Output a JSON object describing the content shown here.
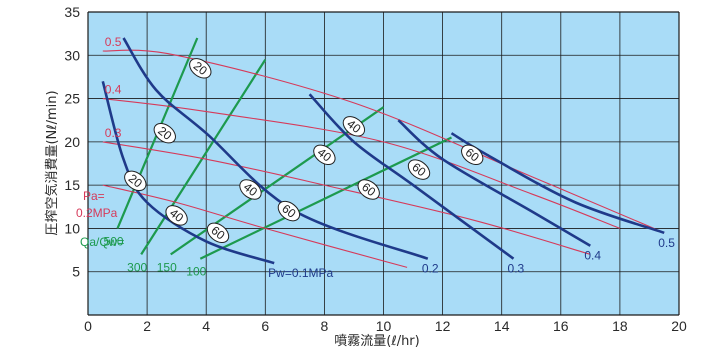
{
  "chart_data": {
    "type": "line",
    "xlabel": "噴霧流量(ℓ/hr)",
    "ylabel": "圧搾空気消費量(Nℓ/min)",
    "xlim": [
      0,
      20
    ],
    "ylim": [
      0,
      35
    ],
    "x_ticks": [
      "0",
      "2",
      "4",
      "6",
      "8",
      "10",
      "12",
      "14",
      "16",
      "18",
      "20"
    ],
    "y_ticks": [
      "5",
      "10",
      "15",
      "20",
      "25",
      "30",
      "35"
    ],
    "grid": true,
    "colors": {
      "background": "#a9dcf7",
      "grid": "#1a1a1a",
      "pa": "#d63a5a",
      "pw": "#1f3a8a",
      "ratio": "#1d9a4e",
      "badge_fill": "#ffffff"
    },
    "pa_header": [
      "Pa=",
      "0.2MPa"
    ],
    "ratio_header": "Qa/Qw=",
    "pa_lines": [
      {
        "label": "",
        "x": [
          0.5,
          3,
          6,
          10.8
        ],
        "y": [
          15,
          13,
          10,
          5.5
        ]
      },
      {
        "label": "0.3",
        "x": [
          0.5,
          4,
          8,
          13,
          17
        ],
        "y": [
          20,
          18,
          15,
          11,
          7
        ]
      },
      {
        "label": "0.4",
        "x": [
          0.5,
          4,
          10,
          15,
          18
        ],
        "y": [
          25,
          23.5,
          20,
          14,
          10
        ]
      },
      {
        "label": "0.5",
        "x": [
          0.5,
          3,
          9,
          15,
          19.5
        ],
        "y": [
          30.5,
          30,
          24.5,
          16,
          9.5
        ]
      }
    ],
    "pw_lines": [
      {
        "label": "Pw=0.1MPa",
        "x": [
          0.5,
          1.2,
          2,
          4,
          6.3
        ],
        "y": [
          27,
          18,
          13,
          8.5,
          6
        ]
      },
      {
        "label": "0.2",
        "x": [
          1.2,
          2.3,
          4,
          7,
          11.5
        ],
        "y": [
          32,
          26,
          21,
          12,
          6.5
        ]
      },
      {
        "label": "0.3",
        "x": [
          7.5,
          9,
          11,
          14.4
        ],
        "y": [
          25.5,
          20,
          15,
          6.5
        ]
      },
      {
        "label": "0.4",
        "x": [
          10.5,
          12,
          15,
          17
        ],
        "y": [
          22.5,
          18,
          12,
          8
        ]
      },
      {
        "label": "0.5",
        "x": [
          12.3,
          13.5,
          16.5,
          19.5
        ],
        "y": [
          21,
          18.5,
          13,
          9.5
        ]
      }
    ],
    "ratio_lines": [
      {
        "label": "500",
        "x": [
          1,
          3.7
        ],
        "y": [
          10,
          32
        ]
      },
      {
        "label": "300",
        "x": [
          1.8,
          6
        ],
        "y": [
          7,
          29.5
        ]
      },
      {
        "label": "150",
        "x": [
          2.8,
          10
        ],
        "y": [
          7,
          24
        ]
      },
      {
        "label": "100",
        "x": [
          3.8,
          12.3
        ],
        "y": [
          6.5,
          20.5
        ]
      }
    ],
    "ratio_badges": [
      {
        "text": "20",
        "x": 1.6,
        "y": 15.5
      },
      {
        "text": "20",
        "x": 2.6,
        "y": 21
      },
      {
        "text": "20",
        "x": 3.8,
        "y": 28.5
      },
      {
        "text": "40",
        "x": 3,
        "y": 11.5
      },
      {
        "text": "40",
        "x": 5.5,
        "y": 14.5
      },
      {
        "text": "40",
        "x": 8,
        "y": 18.5
      },
      {
        "text": "40",
        "x": 9,
        "y": 21.8
      },
      {
        "text": "60",
        "x": 4.4,
        "y": 9.5
      },
      {
        "text": "60",
        "x": 6.8,
        "y": 12
      },
      {
        "text": "60",
        "x": 9.5,
        "y": 14.5
      },
      {
        "text": "60",
        "x": 11.2,
        "y": 16.8
      },
      {
        "text": "60",
        "x": 13,
        "y": 18.5
      }
    ]
  }
}
